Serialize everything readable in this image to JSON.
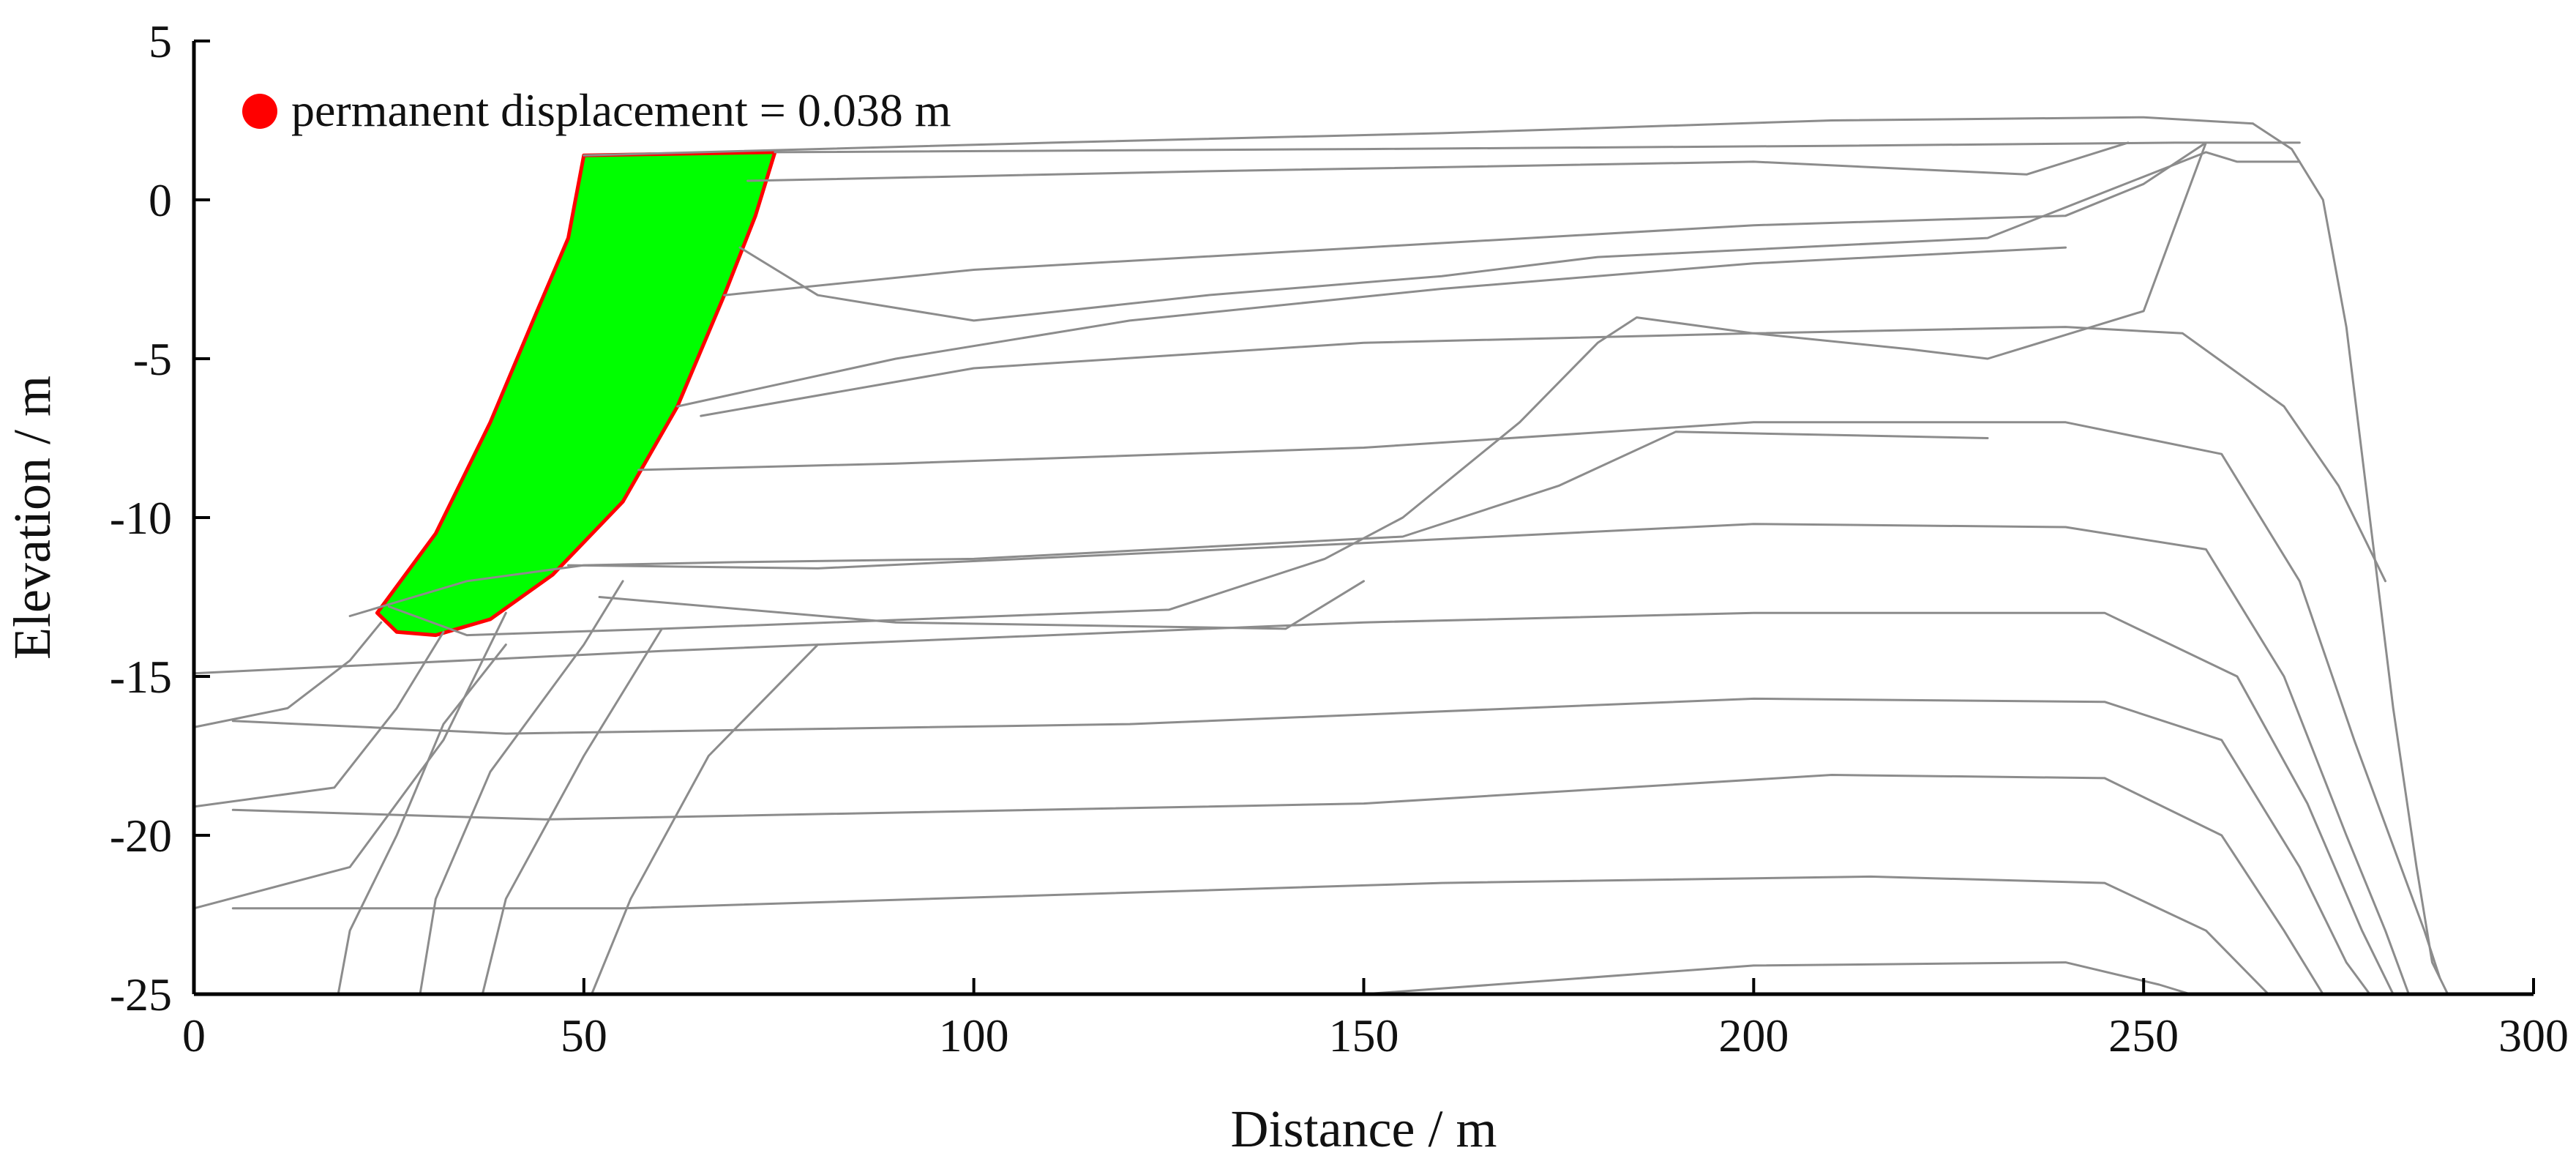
{
  "chart_data": {
    "type": "line",
    "title": "",
    "xlabel": "Distance / m",
    "ylabel": "Elevation / m",
    "xlim": [
      0,
      300
    ],
    "ylim": [
      -25,
      5
    ],
    "xticks": [
      0,
      50,
      100,
      150,
      200,
      250,
      300
    ],
    "yticks": [
      5,
      0,
      -5,
      -10,
      -15,
      -20,
      -25
    ],
    "grid": false,
    "legend": {
      "placement": "top-left",
      "marker_color": "#ff0000",
      "text": "permanent displacement = 0.038 m"
    },
    "sliding_block": {
      "fill_color": "#00ff00",
      "edge_color": "#ff0000",
      "polygon": [
        [
          50,
          1.4
        ],
        [
          74.5,
          1.5
        ],
        [
          72,
          -0.5
        ],
        [
          68,
          -3
        ],
        [
          62,
          -6.5
        ],
        [
          55,
          -9.5
        ],
        [
          46,
          -11.8
        ],
        [
          38,
          -13.2
        ],
        [
          31,
          -13.7
        ],
        [
          26,
          -13.6
        ],
        [
          23.5,
          -13
        ],
        [
          31,
          -10.5
        ],
        [
          38,
          -7
        ],
        [
          44,
          -3.5
        ],
        [
          48,
          -1.2
        ],
        [
          50,
          1.4
        ]
      ]
    },
    "series": [
      {
        "values": [
          [
            50,
            1.4
          ],
          [
            110,
            1.8
          ],
          [
            160,
            2.1
          ],
          [
            210,
            2.5
          ],
          [
            250,
            2.6
          ],
          [
            264,
            2.4
          ]
        ]
      },
      {
        "values": [
          [
            74.5,
            1.5
          ],
          [
            150,
            1.6
          ],
          [
            210,
            1.7
          ],
          [
            254,
            1.8
          ],
          [
            270,
            1.8
          ]
        ]
      },
      {
        "values": [
          [
            264,
            2.4
          ],
          [
            269,
            1.6
          ],
          [
            273,
            0
          ],
          [
            276,
            -4
          ],
          [
            279,
            -10
          ],
          [
            282,
            -16
          ],
          [
            285,
            -21
          ],
          [
            287,
            -24
          ],
          [
            289,
            -25
          ]
        ]
      },
      {
        "values": [
          [
            71,
            0.6
          ],
          [
            130,
            0.9
          ],
          [
            200,
            1.2
          ],
          [
            235,
            0.8
          ],
          [
            248,
            1.8
          ]
        ]
      },
      {
        "values": [
          [
            68,
            -3
          ],
          [
            100,
            -2.2
          ],
          [
            150,
            -1.5
          ],
          [
            200,
            -0.8
          ],
          [
            240,
            -0.5
          ],
          [
            250,
            0.5
          ],
          [
            258,
            1.8
          ]
        ]
      },
      {
        "values": [
          [
            70,
            -1.5
          ],
          [
            80,
            -3.0
          ],
          [
            100,
            -3.8
          ],
          [
            130,
            -3.0
          ],
          [
            160,
            -2.4
          ],
          [
            180,
            -1.8
          ],
          [
            230,
            -1.2
          ],
          [
            258,
            1.5
          ],
          [
            262,
            1.2
          ],
          [
            270,
            1.2
          ]
        ]
      },
      {
        "values": [
          [
            62,
            -6.5
          ],
          [
            90,
            -5.0
          ],
          [
            120,
            -3.8
          ],
          [
            160,
            -2.8
          ],
          [
            200,
            -2.0
          ],
          [
            240,
            -1.5
          ]
        ]
      },
      {
        "values": [
          [
            65,
            -6.8
          ],
          [
            100,
            -5.3
          ],
          [
            150,
            -4.5
          ],
          [
            200,
            -4.2
          ],
          [
            240,
            -4.0
          ],
          [
            255,
            -4.2
          ],
          [
            268,
            -6.5
          ],
          [
            275,
            -9
          ],
          [
            278,
            -10.5
          ],
          [
            281,
            -12
          ]
        ]
      },
      {
        "values": [
          [
            57,
            -8.5
          ],
          [
            90,
            -8.3
          ],
          [
            150,
            -7.8
          ],
          [
            200,
            -7.0
          ],
          [
            240,
            -7.0
          ],
          [
            260,
            -8
          ],
          [
            270,
            -12
          ],
          [
            277,
            -17
          ],
          [
            283,
            -21
          ],
          [
            286,
            -23
          ],
          [
            288,
            -24.5
          ]
        ]
      },
      {
        "values": [
          [
            48,
            -11.5
          ],
          [
            80,
            -11.6
          ],
          [
            150,
            -10.8
          ],
          [
            200,
            -10.2
          ],
          [
            240,
            -10.3
          ],
          [
            258,
            -11
          ],
          [
            268,
            -15
          ],
          [
            276,
            -20
          ],
          [
            281,
            -23
          ],
          [
            284,
            -25
          ]
        ]
      },
      {
        "values": [
          [
            0,
            -14.9
          ],
          [
            60,
            -14.2
          ],
          [
            120,
            -13.6
          ],
          [
            150,
            -13.3
          ],
          [
            200,
            -13.0
          ],
          [
            245,
            -13.0
          ],
          [
            262,
            -15
          ],
          [
            271,
            -19
          ],
          [
            278,
            -23
          ],
          [
            282,
            -25
          ]
        ]
      },
      {
        "values": [
          [
            5,
            -16.4
          ],
          [
            40,
            -16.8
          ],
          [
            120,
            -16.5
          ],
          [
            200,
            -15.7
          ],
          [
            245,
            -15.8
          ],
          [
            260,
            -17
          ],
          [
            270,
            -21
          ],
          [
            276,
            -24
          ],
          [
            279,
            -25
          ]
        ]
      },
      {
        "values": [
          [
            5,
            -19.2
          ],
          [
            45,
            -19.5
          ],
          [
            150,
            -19.0
          ],
          [
            210,
            -18.1
          ],
          [
            245,
            -18.2
          ],
          [
            260,
            -20
          ],
          [
            268,
            -23
          ],
          [
            273,
            -25
          ]
        ]
      },
      {
        "values": [
          [
            5,
            -22.3
          ],
          [
            55,
            -22.3
          ],
          [
            160,
            -21.5
          ],
          [
            215,
            -21.3
          ],
          [
            245,
            -21.5
          ],
          [
            258,
            -23
          ],
          [
            266,
            -25
          ]
        ]
      },
      {
        "values": [
          [
            150,
            -25
          ],
          [
            200,
            -24.1
          ],
          [
            240,
            -24.0
          ],
          [
            252,
            -24.7
          ],
          [
            256,
            -25
          ]
        ]
      },
      {
        "values": [
          [
            0,
            -16.6
          ],
          [
            12,
            -16
          ],
          [
            20,
            -14.5
          ],
          [
            24,
            -13.3
          ]
        ]
      },
      {
        "values": [
          [
            0,
            -19.1
          ],
          [
            18,
            -18.5
          ],
          [
            26,
            -16
          ],
          [
            32,
            -13.6
          ]
        ]
      },
      {
        "values": [
          [
            0,
            -22.3
          ],
          [
            20,
            -21
          ],
          [
            32,
            -17
          ],
          [
            40,
            -13
          ]
        ]
      },
      {
        "values": [
          [
            18.5,
            -25
          ],
          [
            20,
            -23
          ],
          [
            26,
            -20
          ],
          [
            32,
            -16.5
          ],
          [
            40,
            -14
          ]
        ]
      },
      {
        "values": [
          [
            29,
            -25
          ],
          [
            31,
            -22
          ],
          [
            38,
            -18
          ],
          [
            50,
            -14
          ],
          [
            55,
            -12
          ]
        ]
      },
      {
        "values": [
          [
            37,
            -25
          ],
          [
            40,
            -22
          ],
          [
            50,
            -17.5
          ],
          [
            60,
            -13.5
          ]
        ]
      },
      {
        "values": [
          [
            51,
            -25
          ],
          [
            56,
            -22
          ],
          [
            66,
            -17.5
          ],
          [
            80,
            -14
          ]
        ]
      },
      {
        "values": [
          [
            52,
            -12.5
          ],
          [
            90,
            -13.3
          ],
          [
            140,
            -13.5
          ],
          [
            150,
            -12
          ]
        ]
      },
      {
        "values": [
          [
            25,
            -12.8
          ],
          [
            35,
            -13.7
          ],
          [
            60,
            -13.5
          ],
          [
            125,
            -12.9
          ],
          [
            145,
            -11.3
          ],
          [
            155,
            -10
          ],
          [
            170,
            -7
          ],
          [
            180,
            -4.5
          ],
          [
            185,
            -3.7
          ],
          [
            200,
            -4.2
          ],
          [
            220,
            -4.7
          ],
          [
            230,
            -5.0
          ],
          [
            250,
            -3.5
          ],
          [
            258,
            1.8
          ]
        ]
      },
      {
        "values": [
          [
            20,
            -13.1
          ],
          [
            35,
            -12
          ],
          [
            50,
            -11.5
          ],
          [
            70,
            -11.4
          ],
          [
            100,
            -11.3
          ],
          [
            155,
            -10.6
          ],
          [
            175,
            -9
          ],
          [
            190,
            -7.3
          ],
          [
            230,
            -7.5
          ]
        ]
      }
    ]
  }
}
